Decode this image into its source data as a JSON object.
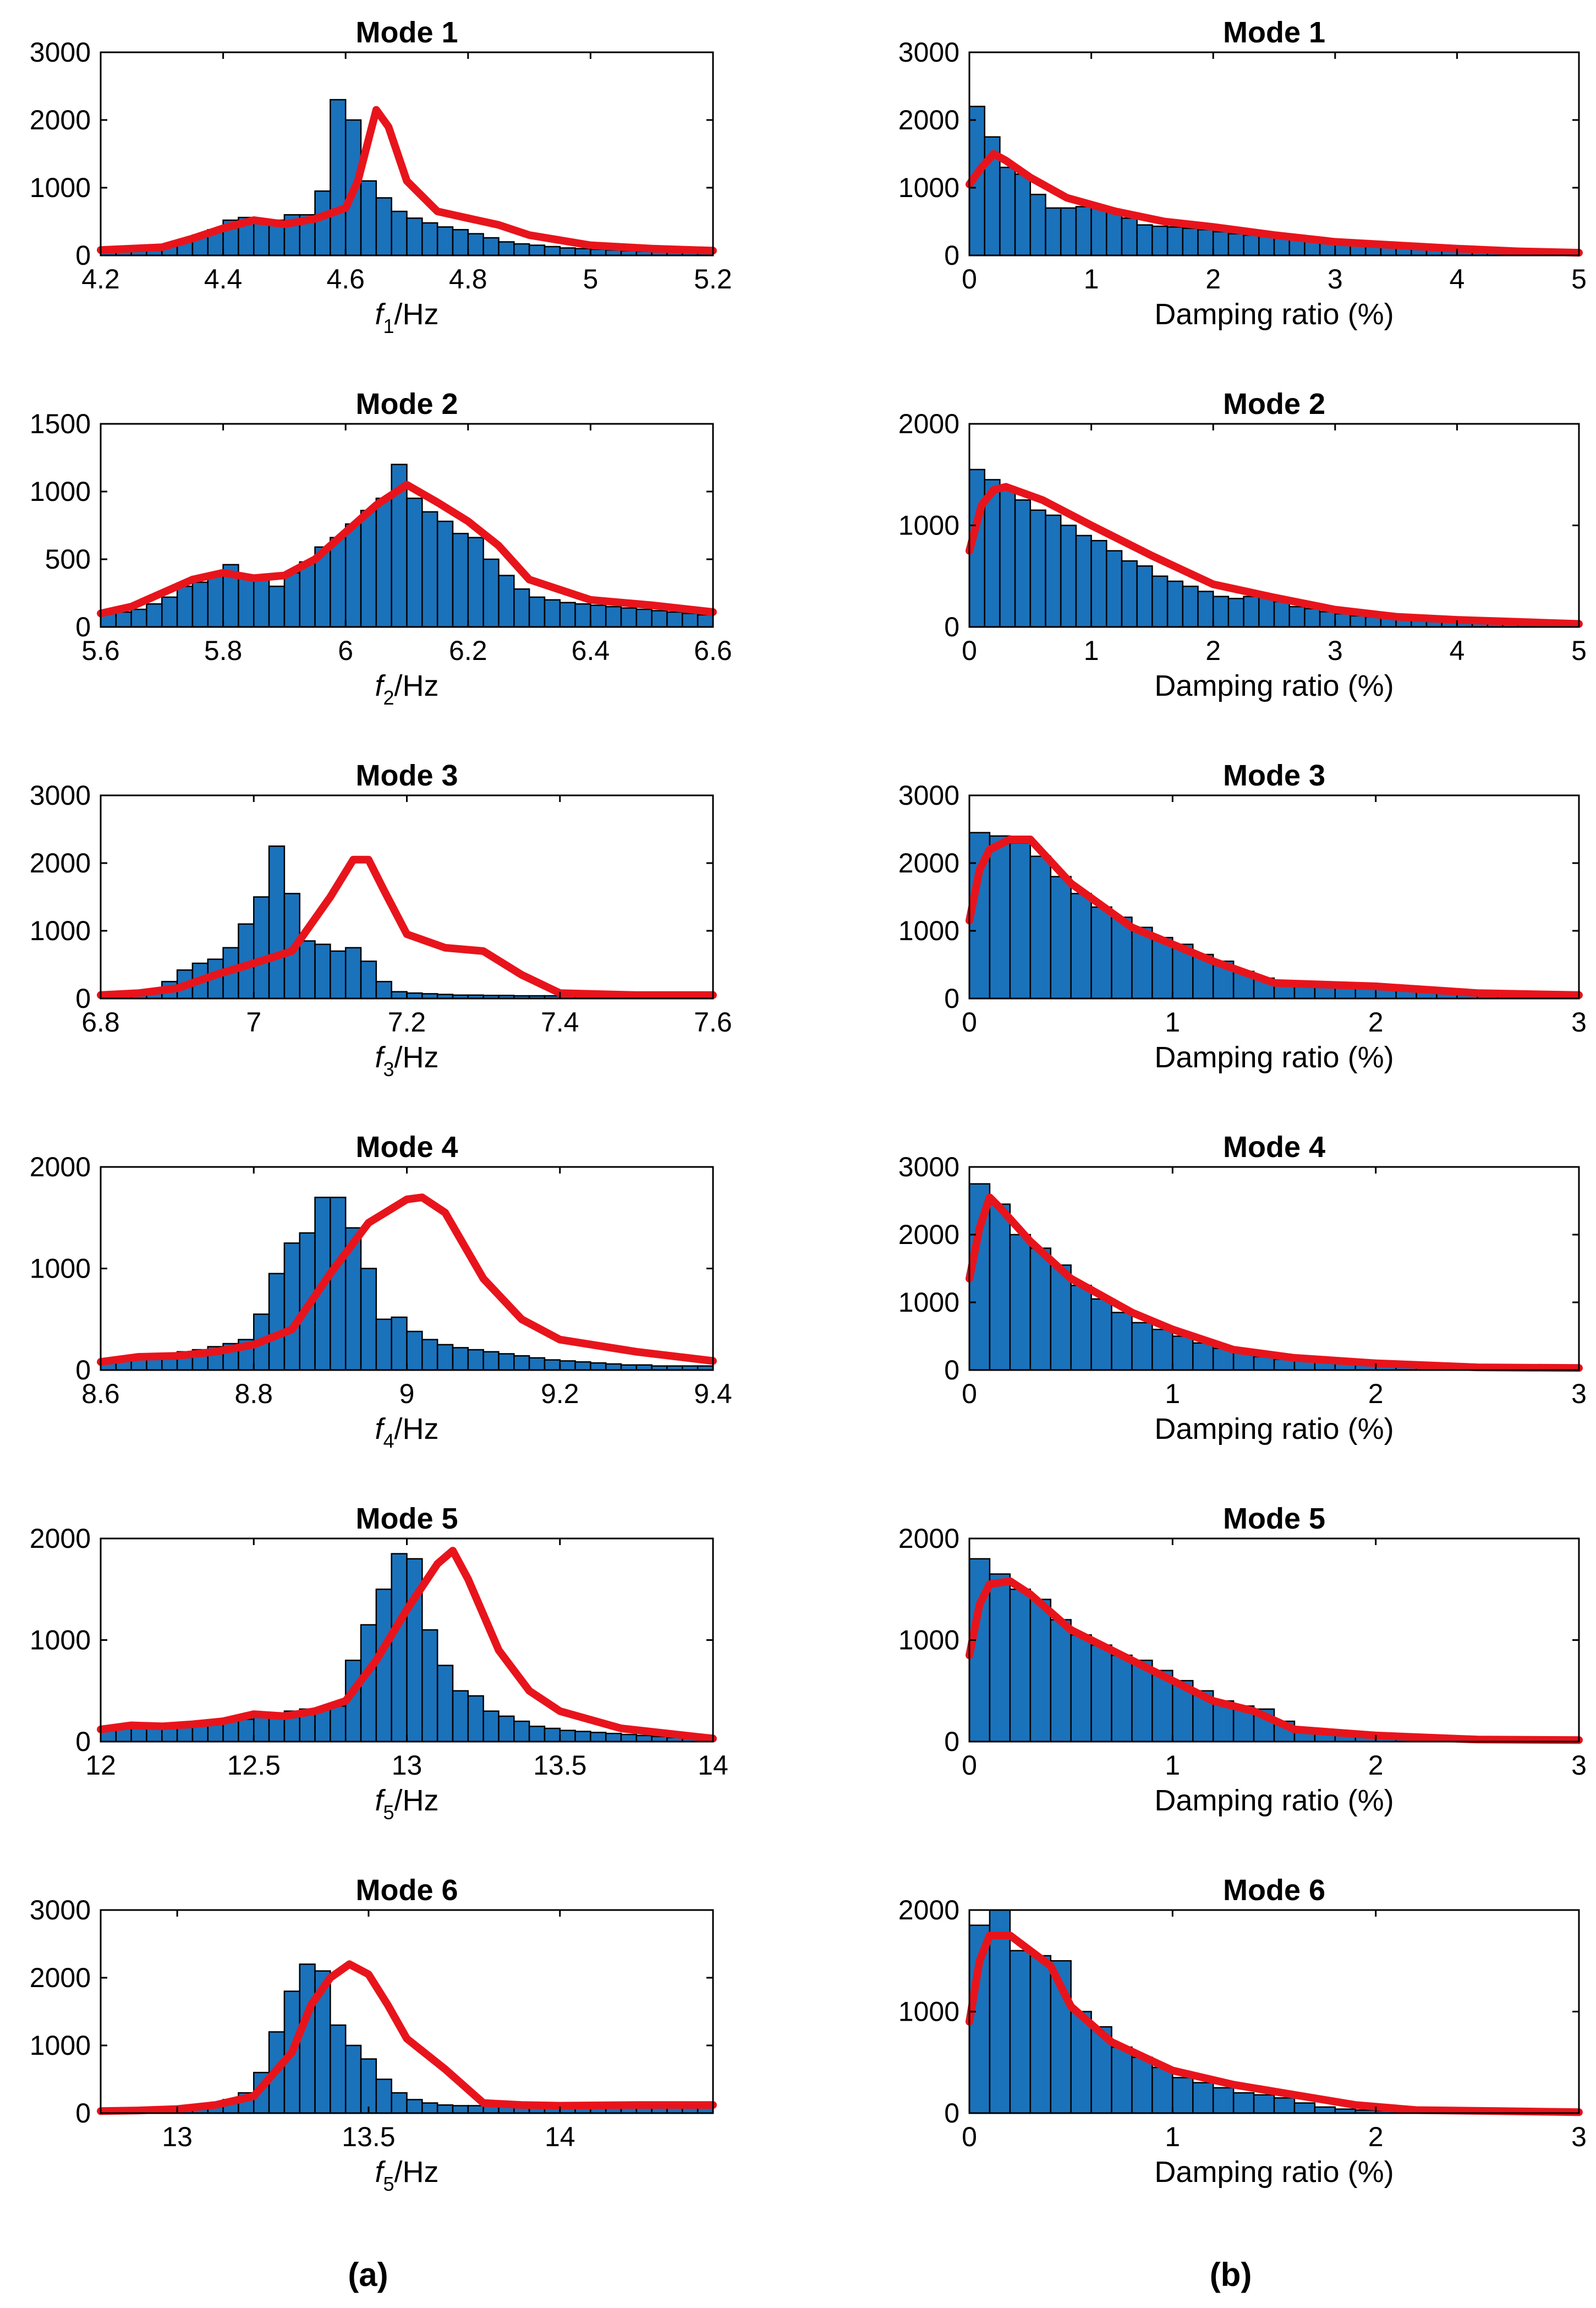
{
  "colors": {
    "bar": "#1a72bb",
    "fit": "#e8141c",
    "axis": "#000000"
  },
  "captions": {
    "left": "(a)",
    "right": "(b)"
  },
  "chart_data": [
    {
      "type": "bar",
      "title": "Mode 1",
      "xlabel": "f",
      "xlabel_sub": "1",
      "xlabel_suffix": "/Hz",
      "xlim": [
        4.2,
        5.2
      ],
      "ylim": [
        0,
        3000
      ],
      "xticks": [
        4.2,
        4.4,
        4.6,
        4.8,
        5,
        5.2
      ],
      "yticks": [
        0,
        1000,
        2000,
        3000
      ],
      "bin_start": 4.2,
      "bin_width": 0.025,
      "values": [
        80,
        80,
        90,
        110,
        130,
        200,
        300,
        380,
        520,
        560,
        480,
        520,
        600,
        600,
        950,
        2300,
        2000,
        1100,
        850,
        650,
        550,
        480,
        420,
        380,
        320,
        260,
        200,
        170,
        150,
        130,
        110,
        100,
        90,
        80,
        70,
        60,
        60,
        55,
        50,
        50
      ],
      "fit_x": [
        4.2,
        4.3,
        4.35,
        4.4,
        4.45,
        4.5,
        4.55,
        4.6,
        4.62,
        4.64,
        4.65,
        4.67,
        4.7,
        4.75,
        4.8,
        4.85,
        4.9,
        5.0,
        5.1,
        5.2
      ],
      "fit_y": [
        80,
        120,
        250,
        400,
        520,
        460,
        540,
        700,
        1100,
        1800,
        2150,
        1900,
        1100,
        650,
        550,
        450,
        300,
        150,
        100,
        70
      ]
    },
    {
      "type": "bar",
      "title": "Mode 1",
      "xlabel": "Damping ratio (%)",
      "xlim": [
        0,
        5
      ],
      "ylim": [
        0,
        3000
      ],
      "xticks": [
        0,
        1,
        2,
        3,
        4,
        5
      ],
      "yticks": [
        0,
        1000,
        2000,
        3000
      ],
      "bin_start": 0,
      "bin_width": 0.125,
      "values": [
        2200,
        1750,
        1300,
        1200,
        900,
        700,
        700,
        720,
        720,
        650,
        550,
        450,
        430,
        420,
        400,
        380,
        350,
        320,
        300,
        280,
        250,
        230,
        210,
        200,
        180,
        160,
        150,
        140,
        130,
        120,
        110,
        100,
        90,
        80,
        70,
        60,
        55,
        50,
        50,
        40
      ],
      "fit_x": [
        0,
        0.1,
        0.2,
        0.3,
        0.5,
        0.8,
        1.2,
        1.6,
        2.0,
        2.5,
        3.0,
        3.5,
        4.0,
        4.5,
        5.0
      ],
      "fit_y": [
        1050,
        1300,
        1500,
        1400,
        1150,
        850,
        650,
        500,
        420,
        300,
        200,
        150,
        100,
        60,
        40
      ]
    },
    {
      "type": "bar",
      "title": "Mode 2",
      "xlabel": "f",
      "xlabel_sub": "2",
      "xlabel_suffix": "/Hz",
      "xlim": [
        5.6,
        6.6
      ],
      "ylim": [
        0,
        1500
      ],
      "xticks": [
        5.6,
        5.8,
        6,
        6.2,
        6.4,
        6.6
      ],
      "yticks": [
        0,
        500,
        1000,
        1500
      ],
      "bin_start": 5.6,
      "bin_width": 0.025,
      "values": [
        100,
        110,
        130,
        170,
        220,
        300,
        330,
        380,
        460,
        380,
        360,
        300,
        400,
        480,
        590,
        660,
        760,
        860,
        950,
        1200,
        950,
        850,
        780,
        690,
        660,
        500,
        380,
        280,
        220,
        200,
        180,
        170,
        160,
        150,
        140,
        130,
        120,
        110,
        100,
        90
      ],
      "fit_x": [
        5.6,
        5.65,
        5.7,
        5.75,
        5.8,
        5.85,
        5.9,
        5.95,
        6.0,
        6.05,
        6.1,
        6.15,
        6.2,
        6.25,
        6.3,
        6.4,
        6.5,
        6.6
      ],
      "fit_y": [
        100,
        150,
        250,
        350,
        400,
        360,
        380,
        500,
        700,
        900,
        1050,
        920,
        780,
        600,
        350,
        200,
        160,
        110
      ]
    },
    {
      "type": "bar",
      "title": "Mode 2",
      "xlabel": "Damping ratio (%)",
      "xlim": [
        0,
        5
      ],
      "ylim": [
        0,
        2000
      ],
      "xticks": [
        0,
        1,
        2,
        3,
        4,
        5
      ],
      "yticks": [
        0,
        1000,
        2000
      ],
      "bin_start": 0,
      "bin_width": 0.125,
      "values": [
        1550,
        1450,
        1350,
        1250,
        1150,
        1100,
        1000,
        900,
        850,
        750,
        650,
        600,
        500,
        450,
        400,
        350,
        300,
        280,
        300,
        320,
        250,
        200,
        180,
        150,
        130,
        110,
        100,
        90,
        80,
        70,
        60,
        55,
        50,
        45,
        40,
        35,
        30,
        30,
        25,
        20
      ],
      "fit_x": [
        0,
        0.1,
        0.2,
        0.3,
        0.6,
        1.0,
        1.5,
        2.0,
        2.5,
        3.0,
        3.5,
        4.0,
        4.5,
        5.0
      ],
      "fit_y": [
        750,
        1200,
        1350,
        1380,
        1250,
        1000,
        700,
        420,
        290,
        170,
        100,
        70,
        50,
        30
      ]
    },
    {
      "type": "bar",
      "title": "Mode 3",
      "xlabel": "f",
      "xlabel_sub": "3",
      "xlabel_suffix": "/Hz",
      "xlim": [
        6.8,
        7.6
      ],
      "ylim": [
        0,
        3000
      ],
      "xticks": [
        6.8,
        7,
        7.2,
        7.4,
        7.6
      ],
      "yticks": [
        0,
        1000,
        2000,
        3000
      ],
      "bin_start": 6.8,
      "bin_width": 0.02,
      "values": [
        50,
        60,
        80,
        120,
        250,
        420,
        520,
        580,
        750,
        1100,
        1500,
        2250,
        1550,
        850,
        800,
        700,
        750,
        550,
        250,
        100,
        80,
        70,
        60,
        50,
        50,
        45,
        45,
        40,
        40,
        40,
        40,
        40,
        40,
        40,
        40,
        40,
        40,
        40,
        40,
        40
      ],
      "fit_x": [
        6.8,
        6.85,
        6.9,
        6.95,
        7.0,
        7.05,
        7.1,
        7.13,
        7.15,
        7.17,
        7.2,
        7.25,
        7.3,
        7.35,
        7.4,
        7.5,
        7.6
      ],
      "fit_y": [
        50,
        80,
        150,
        350,
        520,
        700,
        1500,
        2050,
        2050,
        1600,
        950,
        750,
        700,
        350,
        80,
        50,
        50
      ]
    },
    {
      "type": "bar",
      "title": "Mode 3",
      "xlabel": "Damping ratio (%)",
      "xlim": [
        0,
        3
      ],
      "ylim": [
        0,
        3000
      ],
      "xticks": [
        0,
        1,
        2,
        3
      ],
      "yticks": [
        0,
        1000,
        2000,
        3000
      ],
      "bin_start": 0,
      "bin_width": 0.1,
      "values": [
        2450,
        2400,
        2300,
        2100,
        1800,
        1550,
        1350,
        1200,
        1050,
        900,
        800,
        650,
        550,
        400,
        300,
        230,
        200,
        180,
        170,
        160,
        150,
        120,
        100,
        80,
        70,
        60,
        50,
        50,
        45,
        40
      ],
      "fit_x": [
        0,
        0.05,
        0.1,
        0.2,
        0.3,
        0.5,
        0.8,
        1.2,
        1.5,
        2.0,
        2.5,
        3.0
      ],
      "fit_y": [
        1150,
        1900,
        2200,
        2350,
        2350,
        1700,
        1050,
        550,
        230,
        180,
        80,
        50
      ]
    },
    {
      "type": "bar",
      "title": "Mode 4",
      "xlabel": "f",
      "xlabel_sub": "4",
      "xlabel_suffix": "/Hz",
      "xlim": [
        8.6,
        9.4
      ],
      "ylim": [
        0,
        2000
      ],
      "xticks": [
        8.6,
        8.8,
        9,
        9.2,
        9.4
      ],
      "yticks": [
        0,
        1000,
        2000
      ],
      "bin_start": 8.6,
      "bin_width": 0.02,
      "values": [
        100,
        110,
        120,
        130,
        150,
        180,
        200,
        230,
        260,
        300,
        550,
        950,
        1250,
        1350,
        1700,
        1700,
        1400,
        1000,
        500,
        520,
        380,
        300,
        250,
        220,
        200,
        180,
        160,
        140,
        120,
        100,
        90,
        80,
        70,
        60,
        50,
        50,
        40,
        40,
        40,
        40
      ],
      "fit_x": [
        8.6,
        8.65,
        8.7,
        8.75,
        8.8,
        8.85,
        8.9,
        8.95,
        9.0,
        9.02,
        9.05,
        9.1,
        9.15,
        9.2,
        9.3,
        9.4
      ],
      "fit_y": [
        80,
        130,
        140,
        180,
        250,
        400,
        950,
        1450,
        1680,
        1700,
        1550,
        900,
        500,
        300,
        180,
        90
      ]
    },
    {
      "type": "bar",
      "title": "Mode 4",
      "xlabel": "Damping ratio (%)",
      "xlim": [
        0,
        3
      ],
      "ylim": [
        0,
        3000
      ],
      "xticks": [
        0,
        1,
        2,
        3
      ],
      "yticks": [
        0,
        1000,
        2000,
        3000
      ],
      "bin_start": 0,
      "bin_width": 0.1,
      "values": [
        2750,
        2450,
        2000,
        1800,
        1550,
        1250,
        1050,
        850,
        700,
        600,
        500,
        400,
        320,
        270,
        200,
        160,
        140,
        120,
        110,
        100,
        90,
        70,
        60,
        50,
        45,
        40,
        40,
        35,
        30,
        30
      ],
      "fit_x": [
        0,
        0.05,
        0.1,
        0.15,
        0.3,
        0.5,
        0.8,
        1.0,
        1.3,
        1.6,
        2.0,
        2.5,
        3.0
      ],
      "fit_y": [
        1350,
        2100,
        2550,
        2400,
        1900,
        1350,
        850,
        600,
        300,
        180,
        100,
        40,
        30
      ]
    },
    {
      "type": "bar",
      "title": "Mode 5",
      "xlabel": "f",
      "xlabel_sub": "5",
      "xlabel_suffix": "/Hz",
      "xlim": [
        12,
        14
      ],
      "ylim": [
        0,
        2000
      ],
      "xticks": [
        12,
        12.5,
        13,
        13.5,
        14
      ],
      "yticks": [
        0,
        1000,
        2000
      ],
      "bin_start": 12,
      "bin_width": 0.05,
      "values": [
        150,
        150,
        160,
        170,
        180,
        180,
        190,
        200,
        210,
        220,
        280,
        260,
        300,
        320,
        330,
        350,
        800,
        1150,
        1500,
        1850,
        1800,
        1100,
        750,
        500,
        450,
        300,
        250,
        200,
        150,
        130,
        110,
        100,
        90,
        80,
        70,
        60,
        50,
        40,
        30,
        30
      ],
      "fit_x": [
        12,
        12.1,
        12.2,
        12.3,
        12.4,
        12.5,
        12.6,
        12.7,
        12.8,
        12.9,
        13.0,
        13.1,
        13.15,
        13.2,
        13.3,
        13.4,
        13.5,
        13.7,
        14.0
      ],
      "fit_y": [
        120,
        160,
        150,
        170,
        200,
        270,
        250,
        300,
        400,
        800,
        1300,
        1750,
        1880,
        1600,
        900,
        500,
        300,
        130,
        30
      ]
    },
    {
      "type": "bar",
      "title": "Mode 5",
      "xlabel": "Damping ratio (%)",
      "xlim": [
        0,
        3
      ],
      "ylim": [
        0,
        2000
      ],
      "xticks": [
        0,
        1,
        2,
        3
      ],
      "yticks": [
        0,
        1000,
        2000
      ],
      "bin_start": 0,
      "bin_width": 0.1,
      "values": [
        1800,
        1650,
        1500,
        1400,
        1200,
        1050,
        950,
        850,
        800,
        700,
        600,
        500,
        400,
        350,
        320,
        200,
        120,
        80,
        60,
        50,
        40,
        30,
        25,
        20,
        20,
        20,
        15,
        15,
        15,
        15
      ],
      "fit_x": [
        0,
        0.05,
        0.1,
        0.2,
        0.3,
        0.5,
        0.8,
        1.0,
        1.2,
        1.4,
        1.6,
        2.0,
        2.5,
        3.0
      ],
      "fit_y": [
        850,
        1350,
        1550,
        1580,
        1450,
        1100,
        800,
        600,
        400,
        300,
        120,
        60,
        20,
        15
      ]
    },
    {
      "type": "bar",
      "title": "Mode 6",
      "xlabel": "f",
      "xlabel_sub": "5",
      "xlabel_suffix": "/Hz",
      "xlim": [
        12.8,
        14.4
      ],
      "ylim": [
        0,
        3000
      ],
      "xticks": [
        13,
        13.5,
        14
      ],
      "yticks": [
        0,
        1000,
        2000,
        3000
      ],
      "bin_start": 12.8,
      "bin_width": 0.04,
      "values": [
        30,
        30,
        40,
        50,
        60,
        70,
        100,
        150,
        200,
        300,
        600,
        1200,
        1800,
        2200,
        2100,
        1300,
        1000,
        800,
        500,
        300,
        200,
        150,
        120,
        110,
        110,
        110,
        110,
        110,
        110,
        110,
        110,
        110,
        110,
        110,
        110,
        110,
        110,
        110,
        110,
        110
      ],
      "fit_x": [
        12.8,
        12.9,
        13.0,
        13.1,
        13.2,
        13.3,
        13.35,
        13.4,
        13.45,
        13.5,
        13.55,
        13.6,
        13.7,
        13.8,
        13.9,
        14.0,
        14.2,
        14.4
      ],
      "fit_y": [
        30,
        40,
        60,
        120,
        250,
        900,
        1600,
        2000,
        2200,
        2050,
        1600,
        1100,
        650,
        150,
        120,
        110,
        120,
        120
      ]
    },
    {
      "type": "bar",
      "title": "Mode 6",
      "xlabel": "Damping ratio (%)",
      "xlim": [
        0,
        3
      ],
      "ylim": [
        0,
        2000
      ],
      "xticks": [
        0,
        1,
        2,
        3
      ],
      "yticks": [
        0,
        1000,
        2000
      ],
      "bin_start": 0,
      "bin_width": 0.1,
      "values": [
        1850,
        2000,
        1600,
        1550,
        1500,
        1000,
        850,
        650,
        550,
        450,
        350,
        300,
        250,
        200,
        180,
        150,
        100,
        60,
        40,
        30,
        25,
        20,
        20,
        15,
        15,
        15,
        10,
        10,
        10,
        10
      ],
      "fit_x": [
        0,
        0.05,
        0.1,
        0.2,
        0.3,
        0.4,
        0.5,
        0.7,
        1.0,
        1.3,
        1.6,
        1.9,
        2.2,
        2.6,
        3.0
      ],
      "fit_y": [
        900,
        1500,
        1750,
        1750,
        1600,
        1450,
        1050,
        700,
        420,
        280,
        180,
        80,
        30,
        20,
        10
      ]
    }
  ]
}
